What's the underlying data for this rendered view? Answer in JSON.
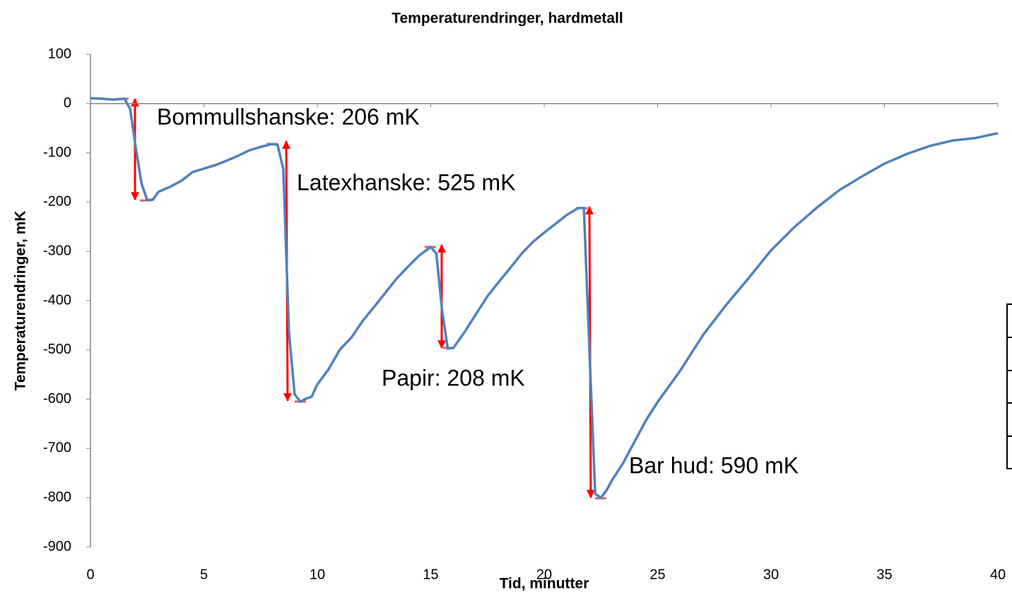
{
  "chart_data": {
    "type": "line",
    "title": "Temperaturendringer, hardmetall",
    "xlabel": "Tid, minutter",
    "ylabel": "Temperaturendringer, mK",
    "xlim": [
      0,
      40
    ],
    "xticks": [
      0,
      5,
      10,
      15,
      20,
      25,
      30,
      35,
      40
    ],
    "ylim": [
      -900,
      100
    ],
    "yticks": [
      100,
      0,
      -100,
      -200,
      -300,
      -400,
      -500,
      -600,
      -700,
      -800,
      -900
    ],
    "grid": false,
    "x": [
      0,
      0.5,
      1,
      1.5,
      1.75,
      2,
      2.25,
      2.5,
      2.75,
      3,
      3.5,
      4,
      4.5,
      5,
      5.5,
      6,
      6.5,
      7,
      7.5,
      8,
      8.25,
      8.5,
      8.75,
      9,
      9.25,
      9.5,
      9.75,
      10,
      10.5,
      11,
      11.5,
      12,
      12.5,
      13,
      13.5,
      14,
      14.5,
      15,
      15.25,
      15.5,
      15.75,
      16,
      16.5,
      17,
      17.5,
      18,
      18.5,
      19,
      19.5,
      20,
      20.5,
      21,
      21.5,
      21.75,
      22,
      22.25,
      22.5,
      22.75,
      23,
      23.5,
      24,
      24.5,
      25,
      26,
      27,
      28,
      29,
      30,
      31,
      32,
      33,
      34,
      35,
      36,
      37,
      38,
      39,
      40
    ],
    "series": [
      {
        "color": "#4f81bd",
        "values": [
          11,
          10,
          8,
          10,
          -11,
          -90,
          -162,
          -196,
          -195,
          -179,
          -169,
          -157,
          -139,
          -132,
          -125,
          -116,
          -106,
          -95,
          -88,
          -82,
          -84,
          -133,
          -463,
          -590,
          -605,
          -599,
          -595,
          -570,
          -539,
          -499,
          -475,
          -441,
          -413,
          -384,
          -355,
          -331,
          -308,
          -291,
          -305,
          -420,
          -497,
          -496,
          -463,
          -427,
          -391,
          -362,
          -334,
          -305,
          -281,
          -262,
          -244,
          -226,
          -212,
          -212,
          -506,
          -792,
          -800,
          -785,
          -764,
          -728,
          -685,
          -642,
          -606,
          -542,
          -470,
          -410,
          -355,
          -298,
          -252,
          -212,
          -176,
          -148,
          -122,
          -102,
          -86,
          -75,
          -70,
          -60
        ]
      }
    ],
    "annotations": [
      "Bommullshanske: 206 mK",
      "Latexhanske: 525 mK",
      "Papir: 208 mK",
      "Bar hud: 590 mK"
    ]
  }
}
